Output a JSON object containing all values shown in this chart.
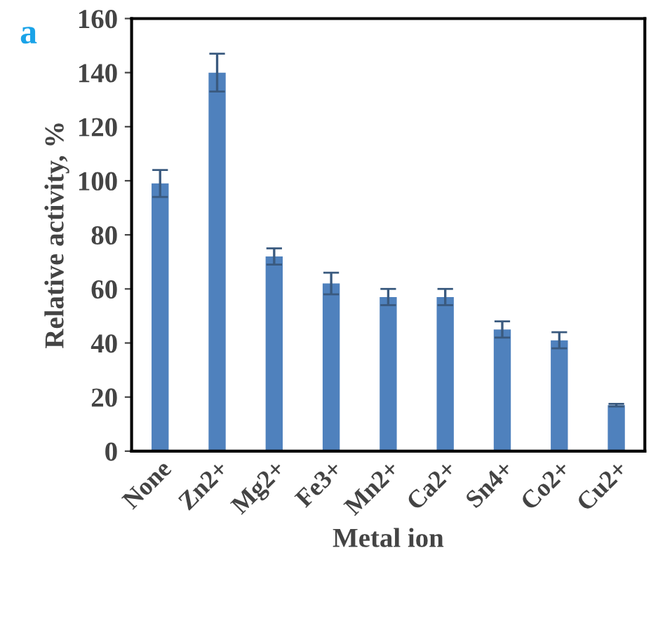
{
  "chart_data": {
    "type": "bar",
    "xlabel": "Metal ion",
    "ylabel": "Relative activity, %",
    "annotations": [
      "a"
    ],
    "categories": [
      "None",
      "Zn2+",
      "Mg2+",
      "Fe3+",
      "Mn2+",
      "Ca2+",
      "Sn4+",
      "Co2+",
      "Cu2+"
    ],
    "values": [
      99,
      140,
      72,
      62,
      57,
      57,
      45,
      41,
      17
    ],
    "errors": [
      5,
      7,
      3,
      4,
      3,
      3,
      3,
      3,
      0.5
    ],
    "color": "#4f81bd",
    "ylim": [
      0,
      160
    ],
    "yticks": [
      0,
      20,
      40,
      60,
      80,
      100,
      120,
      140,
      160
    ],
    "grid": false
  }
}
